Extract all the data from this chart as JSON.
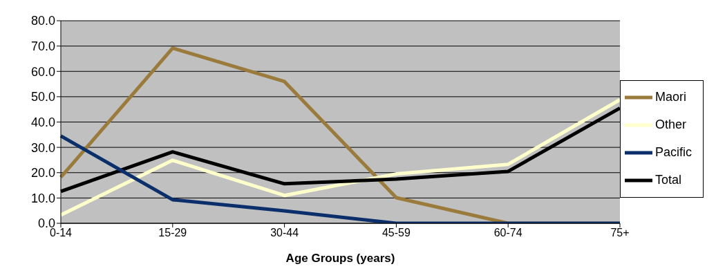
{
  "chart_data": {
    "type": "line",
    "xlabel": "Age Groups (years)",
    "categories": [
      "0-14",
      "15-29",
      "30-44",
      "45-59",
      "60-74",
      "75+"
    ],
    "series": [
      {
        "name": "Maori",
        "color": "#9a7b3c",
        "values": [
          18.2,
          69.2,
          56,
          10.1,
          0,
          0
        ]
      },
      {
        "name": "Other",
        "color": "#ffffcc",
        "values": [
          3.3,
          24.9,
          11,
          19.5,
          23.3,
          48.8
        ]
      },
      {
        "name": "Total",
        "color": "#000000",
        "values": [
          12.6,
          28.2,
          15.6,
          17.5,
          20.5,
          45.5
        ]
      },
      {
        "name": "Pacific",
        "color": "#0a2f6a",
        "values": [
          34.5,
          9.3,
          4.9,
          0,
          0,
          0
        ]
      }
    ],
    "ylim": [
      0,
      80
    ],
    "yticks": [
      {
        "value": 0,
        "label": "0.0"
      },
      {
        "value": 10,
        "label": "10.0"
      },
      {
        "value": 20,
        "label": "20.0"
      },
      {
        "value": 30,
        "label": "30.0"
      },
      {
        "value": 40,
        "label": "40.0"
      },
      {
        "value": 50,
        "label": "50.0"
      },
      {
        "value": 60,
        "label": "60.0"
      },
      {
        "value": 70,
        "label": "70.0"
      },
      {
        "value": 80,
        "label": "80.0"
      }
    ],
    "grid": "y",
    "legend": "right",
    "marker": "none",
    "line_style": "solid"
  }
}
